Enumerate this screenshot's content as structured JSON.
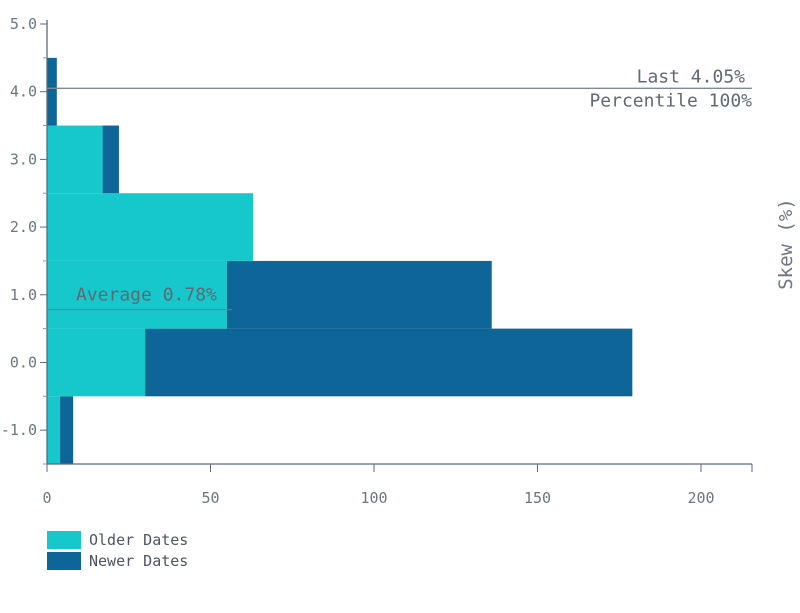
{
  "chart_data": {
    "type": "bar",
    "orientation": "horizontal",
    "stacked": true,
    "categories": [
      "-1.0",
      "0.0",
      "1.0",
      "2.0",
      "3.0",
      "4.0"
    ],
    "bins": [
      -1.0,
      0.0,
      1.0,
      2.0,
      3.0,
      4.0
    ],
    "series": [
      {
        "name": "Older Dates",
        "values": [
          4,
          30,
          55,
          63,
          17,
          0
        ],
        "color": "#16c8cc"
      },
      {
        "name": "Newer Dates",
        "values": [
          4,
          149,
          81,
          0,
          5,
          3
        ],
        "color": "#0e6597"
      }
    ],
    "xlim": [
      0,
      215
    ],
    "ylim": [
      -1.5,
      5.0
    ],
    "x_ticks": [
      0,
      50,
      100,
      150,
      200
    ],
    "x_tick_labels": [
      "0",
      "50",
      "100",
      "150",
      "200"
    ],
    "y_ticks": [
      -1.0,
      0.0,
      1.0,
      2.0,
      3.0,
      4.0,
      5.0
    ],
    "y_tick_labels": [
      "-1.0",
      "0.0",
      "1.0",
      "2.0",
      "3.0",
      "4.0",
      "5.0"
    ],
    "ylabel": "Skew (%)",
    "ylabel_position": "right",
    "annotations": [
      {
        "id": "last",
        "value": 4.05,
        "lines": [
          "Last 4.05%",
          "Percentile 100%"
        ]
      },
      {
        "id": "average",
        "value": 0.78,
        "lines": [
          "Average 0.78%"
        ]
      }
    ],
    "legend": {
      "position": "bottom-left",
      "entries": [
        "Older Dates",
        "Newer Dates"
      ]
    }
  }
}
